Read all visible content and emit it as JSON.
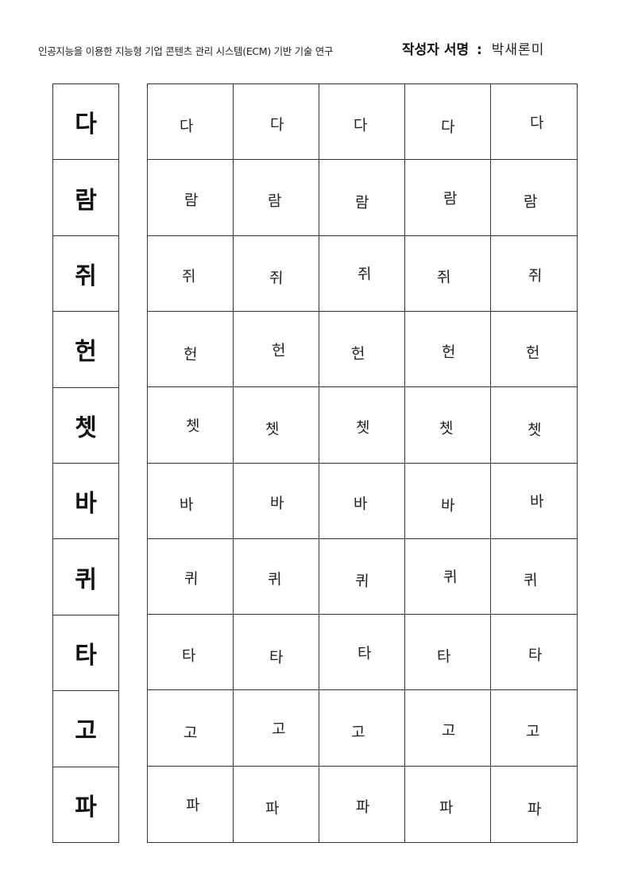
{
  "header": {
    "title": "인공지능을 이용한 지능형 기업 콘텐츠 관리 시스템(ECM) 기반 기술 연구",
    "signature_label": "작성자 서명",
    "separator": ":",
    "signer_name": "박새론미"
  },
  "reference_chars": [
    "다",
    "람",
    "쥐",
    "헌",
    "쳇",
    "바",
    "퀴",
    "타",
    "고",
    "파"
  ],
  "samples_per_row": 5,
  "rows": [
    [
      "다",
      "다",
      "다",
      "다",
      "다"
    ],
    [
      "람",
      "람",
      "람",
      "람",
      "람"
    ],
    [
      "쥐",
      "쥐",
      "쥐",
      "쥐",
      "쥐"
    ],
    [
      "헌",
      "헌",
      "헌",
      "헌",
      "헌"
    ],
    [
      "쳇",
      "쳇",
      "쳇",
      "쳇",
      "쳇"
    ],
    [
      "바",
      "바",
      "바",
      "바",
      "바"
    ],
    [
      "퀴",
      "퀴",
      "퀴",
      "퀴",
      "퀴"
    ],
    [
      "타",
      "타",
      "타",
      "타",
      "타"
    ],
    [
      "고",
      "고",
      "고",
      "고",
      "고"
    ],
    [
      "파",
      "파",
      "파",
      "파",
      "파"
    ]
  ]
}
